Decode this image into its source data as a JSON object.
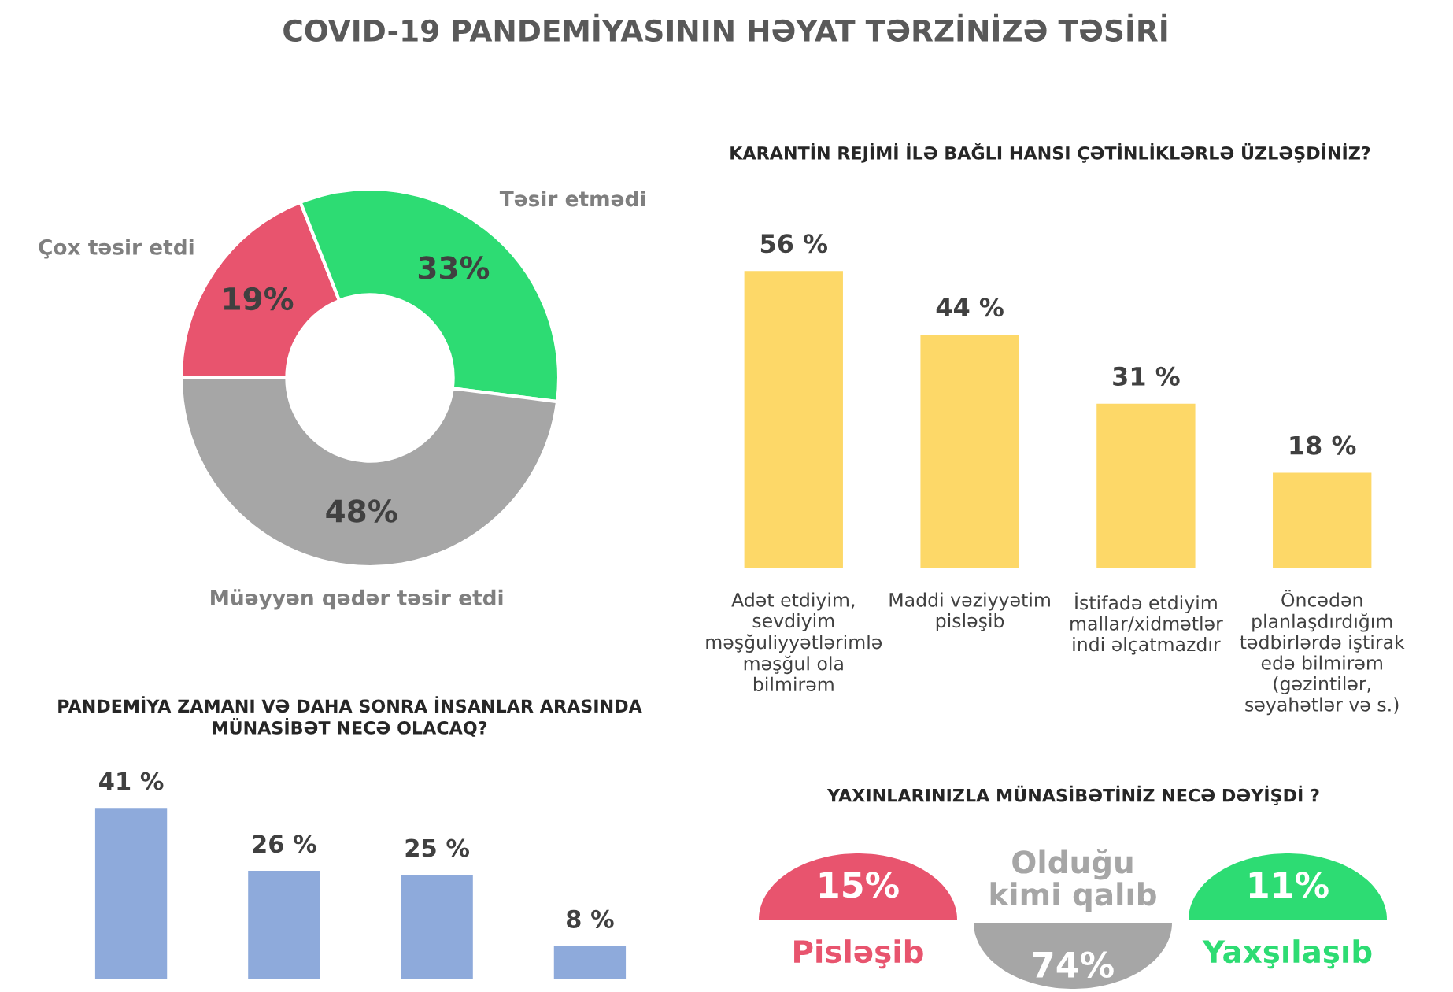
{
  "chart_data": [
    {
      "type": "donut",
      "title": "COVID-19 PANDEMİYASININ HƏYAT TƏRZİNİZƏ TƏSİRİ",
      "categories": [
        "Çox təsir etdi",
        "Təsir etmədi",
        "Müəyyən qədər təsir etdi"
      ],
      "values": [
        19,
        33,
        48
      ],
      "value_labels": [
        "19%",
        "33%",
        "48%"
      ],
      "colors": [
        "#e8546e",
        "#2ddc73",
        "#a6a6a6"
      ]
    },
    {
      "type": "bar",
      "title": "KARANTİN REJİMİ İLƏ BAĞLI HANSI ÇƏTİNLİKLƏRLƏ ÜZLƏŞDİNİZ?",
      "categories": [
        "Adət etdiyim, sevdiyim məşğuliyyətlərimlə məşğul ola bilmirəm",
        "Maddi vəziyyətim pisləşib",
        "İstifadə etdiyim mallar/xidmətlər indi əlçatmazdır",
        "Öncədən planlaşdırdığım tədbirlərdə iştirak edə bilmirəm (gəzintilər, səyahətlər və s.)"
      ],
      "values": [
        56,
        44,
        31,
        18
      ],
      "value_labels": [
        "56 %",
        "44 %",
        "31 %",
        "18 %"
      ],
      "color": "#fdd868"
    },
    {
      "type": "bar",
      "title": "PANDEMİYA ZAMANI VƏ DAHA SONRA İNSANLAR ARASINDA MÜNASİBƏT NECƏ OLACAQ?",
      "categories": [
        null,
        null,
        null,
        null
      ],
      "values": [
        41,
        26,
        25,
        8
      ],
      "value_labels": [
        "41 %",
        "26 %",
        "25 %",
        "8 %"
      ],
      "color": "#8eaadb"
    },
    {
      "type": "other",
      "title": "YAXINLARINIZLA MÜNASİBƏTİNİZ NECƏ DƏYİŞDİ ?",
      "categories": [
        "Pisləşib",
        "Olduğu kimi qalıb",
        "Yaxşılaşıb"
      ],
      "values": [
        15,
        74,
        11
      ],
      "value_labels": [
        "15%",
        "74%",
        "11%"
      ],
      "colors": [
        "#e8546e",
        "#a6a6a6",
        "#2ddc73"
      ]
    }
  ]
}
